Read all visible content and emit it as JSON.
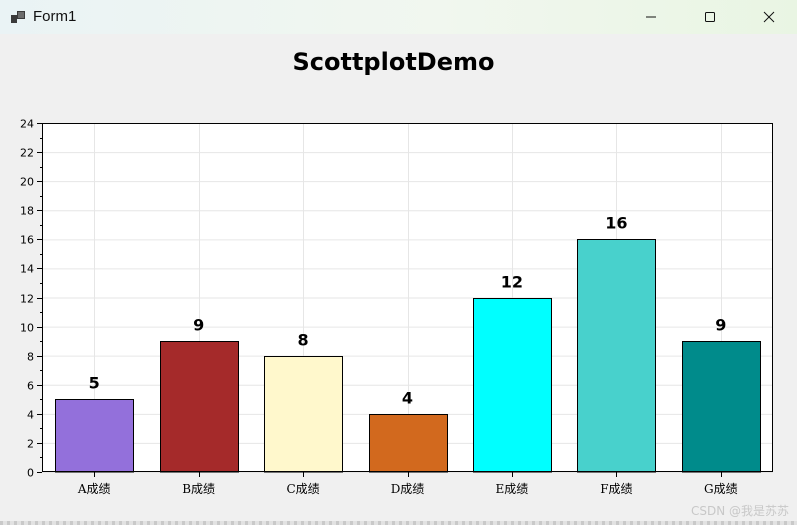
{
  "window": {
    "title": "Form1",
    "controls": {
      "minimize_icon": "minimize-icon",
      "maximize_icon": "maximize-icon",
      "close_icon": "close-icon"
    }
  },
  "watermark": "CSDN @我是苏苏",
  "chart_data": {
    "type": "bar",
    "title": "ScottplotDemo",
    "xlabel": "",
    "ylabel": "",
    "categories": [
      "A成绩",
      "B成绩",
      "C成绩",
      "D成绩",
      "E成绩",
      "F成绩",
      "G成绩"
    ],
    "values": [
      5,
      9,
      8,
      4,
      12,
      16,
      9
    ],
    "value_labels": [
      "5",
      "9",
      "8",
      "4",
      "12",
      "16",
      "9"
    ],
    "colors": [
      "#9370db",
      "#a52a2a",
      "#fff8cc",
      "#d2691e",
      "#00ffff",
      "#48d1cc",
      "#008b8b"
    ],
    "ylim": [
      0,
      24
    ],
    "yticks": [
      0,
      2,
      4,
      6,
      8,
      10,
      12,
      14,
      16,
      18,
      20,
      22,
      24
    ],
    "ytick_labels": [
      "0",
      "2",
      "4",
      "6",
      "8",
      "10",
      "12",
      "14",
      "16",
      "18",
      "20",
      "22",
      "24"
    ],
    "grid": true,
    "legend": "none"
  }
}
